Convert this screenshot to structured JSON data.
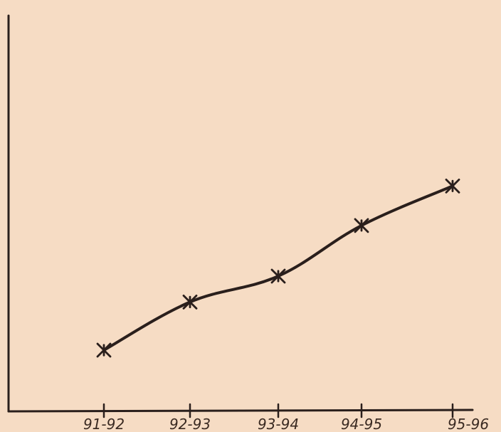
{
  "chart_data": {
    "type": "line",
    "title": "",
    "xlabel": "",
    "ylabel": "",
    "categories": [
      "91-92",
      "92-93",
      "93-94",
      "94-95",
      "95-96"
    ],
    "series": [
      {
        "values": [
          2.45,
          4.4,
          5.45,
          7.5,
          9.1
        ],
        "marker": "x-cross"
      }
    ],
    "ylim": [
      0,
      16
    ],
    "y_ticks_shown": false,
    "grid": false,
    "legend": "none"
  },
  "colors": {
    "background": "#f6dcc4",
    "ink": "#2a1f1c",
    "label": "#3a2a22"
  }
}
